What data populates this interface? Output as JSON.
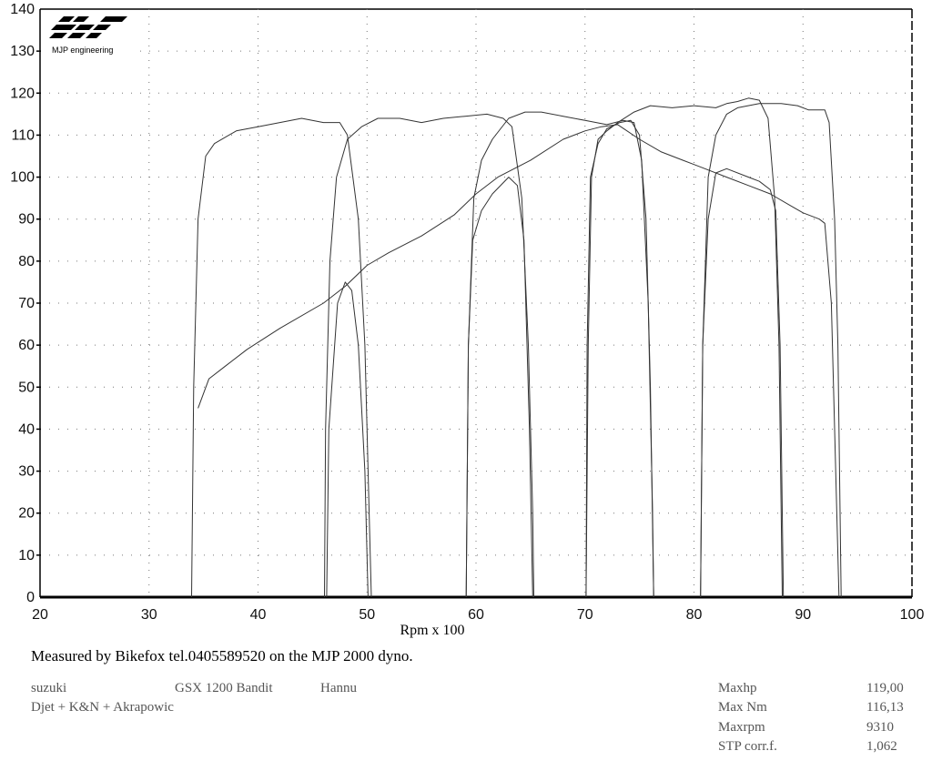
{
  "logo": {
    "text": "MJP engineering"
  },
  "chart_data": {
    "type": "line",
    "xlabel": "Rpm x 100",
    "ylabel": "",
    "xlim": [
      20,
      100
    ],
    "ylim": [
      0,
      140
    ],
    "xticks": [
      20,
      30,
      40,
      50,
      60,
      70,
      80,
      90,
      100
    ],
    "yticks": [
      0,
      10,
      20,
      30,
      40,
      50,
      60,
      70,
      80,
      90,
      100,
      110,
      120,
      130,
      140
    ],
    "grid": true,
    "legend": "none",
    "series": [
      {
        "points": [
          [
            33.9,
            0
          ],
          [
            34.1,
            50
          ],
          [
            34.5,
            90
          ],
          [
            35.2,
            105
          ],
          [
            36,
            108
          ],
          [
            38,
            111
          ],
          [
            40,
            112
          ],
          [
            42,
            113
          ],
          [
            44,
            114
          ],
          [
            46,
            113
          ],
          [
            47.5,
            113
          ],
          [
            48.2,
            110
          ],
          [
            49.2,
            90
          ],
          [
            49.8,
            60
          ],
          [
            50.2,
            20
          ],
          [
            50.4,
            0
          ]
        ]
      },
      {
        "points": [
          [
            46.1,
            0
          ],
          [
            46.2,
            40
          ],
          [
            46.6,
            80
          ],
          [
            47.2,
            100
          ],
          [
            48.2,
            109
          ],
          [
            49.5,
            112
          ],
          [
            51,
            114
          ],
          [
            53,
            114
          ],
          [
            55,
            113
          ],
          [
            57,
            114
          ],
          [
            59,
            114.5
          ],
          [
            61,
            115
          ],
          [
            62.5,
            114
          ],
          [
            63.3,
            112
          ],
          [
            64.2,
            95
          ],
          [
            64.8,
            60
          ],
          [
            65.2,
            20
          ],
          [
            65.3,
            0
          ]
        ]
      },
      {
        "points": [
          [
            59.1,
            0
          ],
          [
            59.3,
            60
          ],
          [
            59.8,
            95
          ],
          [
            60.5,
            104
          ],
          [
            61.5,
            109
          ],
          [
            63,
            114
          ],
          [
            64.5,
            115.5
          ],
          [
            66,
            115.5
          ],
          [
            68,
            114.5
          ],
          [
            70,
            113.5
          ],
          [
            72,
            112.5
          ],
          [
            73.5,
            113.5
          ],
          [
            74.5,
            113
          ],
          [
            75.2,
            104
          ],
          [
            75.8,
            70
          ],
          [
            76.2,
            20
          ],
          [
            76.3,
            0
          ]
        ]
      },
      {
        "points": [
          [
            70.1,
            0
          ],
          [
            70.3,
            60
          ],
          [
            70.6,
            100
          ],
          [
            71.2,
            109
          ],
          [
            72,
            111
          ],
          [
            73,
            113
          ],
          [
            74.5,
            115.5
          ],
          [
            76,
            117
          ],
          [
            78,
            116.5
          ],
          [
            80,
            117
          ],
          [
            82,
            116.5
          ],
          [
            83,
            117.5
          ],
          [
            84,
            118
          ],
          [
            85,
            118.8
          ],
          [
            86,
            118.3
          ],
          [
            86.8,
            114
          ],
          [
            87.4,
            95
          ],
          [
            87.8,
            60
          ],
          [
            88,
            20
          ],
          [
            88.1,
            0
          ]
        ]
      },
      {
        "points": [
          [
            80.6,
            0
          ],
          [
            80.8,
            60
          ],
          [
            81.3,
            100
          ],
          [
            82,
            110
          ],
          [
            83,
            115
          ],
          [
            84,
            116.5
          ],
          [
            86,
            117.5
          ],
          [
            88,
            117.5
          ],
          [
            89.5,
            117
          ],
          [
            90.5,
            116
          ],
          [
            92,
            116
          ],
          [
            92.4,
            113
          ],
          [
            92.9,
            90
          ],
          [
            93.2,
            60
          ],
          [
            93.4,
            20
          ],
          [
            93.5,
            0
          ]
        ]
      },
      {
        "points": [
          [
            34.5,
            45
          ],
          [
            35.5,
            52
          ],
          [
            37,
            55
          ],
          [
            39,
            59
          ],
          [
            42,
            64
          ],
          [
            46,
            70
          ],
          [
            48,
            74
          ],
          [
            50,
            79
          ],
          [
            52,
            82
          ],
          [
            55,
            86
          ],
          [
            58,
            91
          ],
          [
            60,
            96
          ],
          [
            62,
            100
          ],
          [
            65,
            104
          ],
          [
            68,
            109
          ],
          [
            70,
            111
          ],
          [
            71.5,
            112
          ],
          [
            73,
            112.5
          ],
          [
            75,
            109
          ],
          [
            77,
            106
          ],
          [
            79,
            104
          ],
          [
            81,
            102
          ],
          [
            83,
            100
          ],
          [
            85,
            98
          ],
          [
            87,
            96
          ],
          [
            89,
            93
          ],
          [
            90,
            91.5
          ],
          [
            91.5,
            90
          ],
          [
            92,
            89
          ],
          [
            92.6,
            70
          ],
          [
            93,
            30
          ],
          [
            93.3,
            0
          ]
        ]
      },
      {
        "points": [
          [
            46.3,
            0
          ],
          [
            46.5,
            40
          ],
          [
            47.3,
            70
          ],
          [
            48,
            75
          ],
          [
            48.6,
            73
          ],
          [
            49.2,
            60
          ],
          [
            49.8,
            30
          ],
          [
            50.1,
            0
          ]
        ]
      },
      {
        "points": [
          [
            59.1,
            0
          ],
          [
            59.3,
            60
          ],
          [
            59.7,
            85
          ],
          [
            60.5,
            92
          ],
          [
            61.5,
            96
          ],
          [
            63,
            100
          ],
          [
            63.8,
            98
          ],
          [
            64.4,
            85
          ],
          [
            64.9,
            40
          ],
          [
            65.2,
            0
          ]
        ]
      },
      {
        "points": [
          [
            70.1,
            0
          ],
          [
            70.2,
            60
          ],
          [
            70.5,
            100
          ],
          [
            71.2,
            108
          ],
          [
            72,
            111.5
          ],
          [
            73.2,
            113
          ],
          [
            74.2,
            113.5
          ],
          [
            75,
            110
          ],
          [
            75.6,
            90
          ],
          [
            76,
            50
          ],
          [
            76.3,
            0
          ]
        ]
      },
      {
        "points": [
          [
            80.6,
            0
          ],
          [
            80.8,
            60
          ],
          [
            81.3,
            90
          ],
          [
            82,
            101
          ],
          [
            83,
            102
          ],
          [
            85,
            100
          ],
          [
            86,
            99
          ],
          [
            87,
            97
          ],
          [
            87.5,
            92
          ],
          [
            87.9,
            60
          ],
          [
            88.1,
            20
          ],
          [
            88.2,
            0
          ]
        ]
      }
    ]
  },
  "footer": {
    "measured": "Measured by Bikefox tel.0405589520 on the MJP 2000 dyno.",
    "make": "suzuki",
    "model": "GSX 1200 Bandit",
    "owner": "Hannu",
    "mods": "Djet + K&N + Akrapowic",
    "stats": [
      {
        "label": "Maxhp",
        "value": "119,00"
      },
      {
        "label": "Max Nm",
        "value": "116,13"
      },
      {
        "label": "Maxrpm",
        "value": "9310"
      },
      {
        "label": "STP corr.f.",
        "value": "1,062"
      }
    ]
  }
}
